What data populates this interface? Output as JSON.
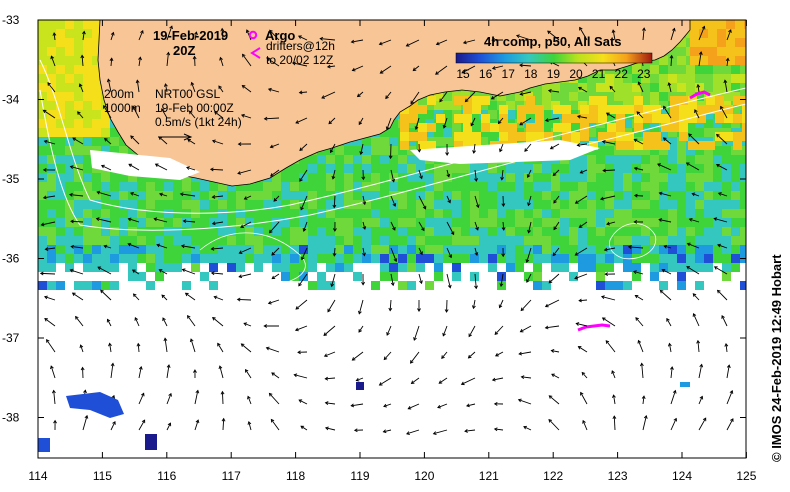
{
  "header": {
    "date": "19-Feb-2019",
    "time": "20Z",
    "argo_label": "Argo",
    "drifters_line1": "drifters@12h",
    "drifters_line2": "to 20/02 12Z",
    "composite_label": "4h comp, p50, All Sats"
  },
  "colorbar": {
    "ticks": [
      "15",
      "16",
      "17",
      "18",
      "19",
      "20",
      "21",
      "22",
      "23"
    ],
    "colors": [
      "#1a1a8c",
      "#1f4fd6",
      "#1e9be0",
      "#34c7c0",
      "#3fd43a",
      "#b9e21d",
      "#f5df1b",
      "#f5a11b",
      "#e23a1b",
      "#a01a10"
    ]
  },
  "annotations": {
    "isobath_200": "200m",
    "isobath_1000": "1000m",
    "product": "NRT00 GSL",
    "product_time": "19-Feb 00:00Z",
    "velocity_scale": "0.5m/s (1kt 24h)"
  },
  "axes": {
    "lat_ticks": [
      "-33",
      "-34",
      "-35",
      "-36",
      "-37",
      "-38"
    ],
    "lon_ticks": [
      "114",
      "115",
      "116",
      "117",
      "118",
      "119",
      "120",
      "121",
      "122",
      "123",
      "124",
      "125"
    ]
  },
  "credit": "© IMOS 24-Feb-2019 12:49 Hobart",
  "colors": {
    "land": "#f7c596",
    "argo": "#ff00ff",
    "frame": "#000000"
  }
}
